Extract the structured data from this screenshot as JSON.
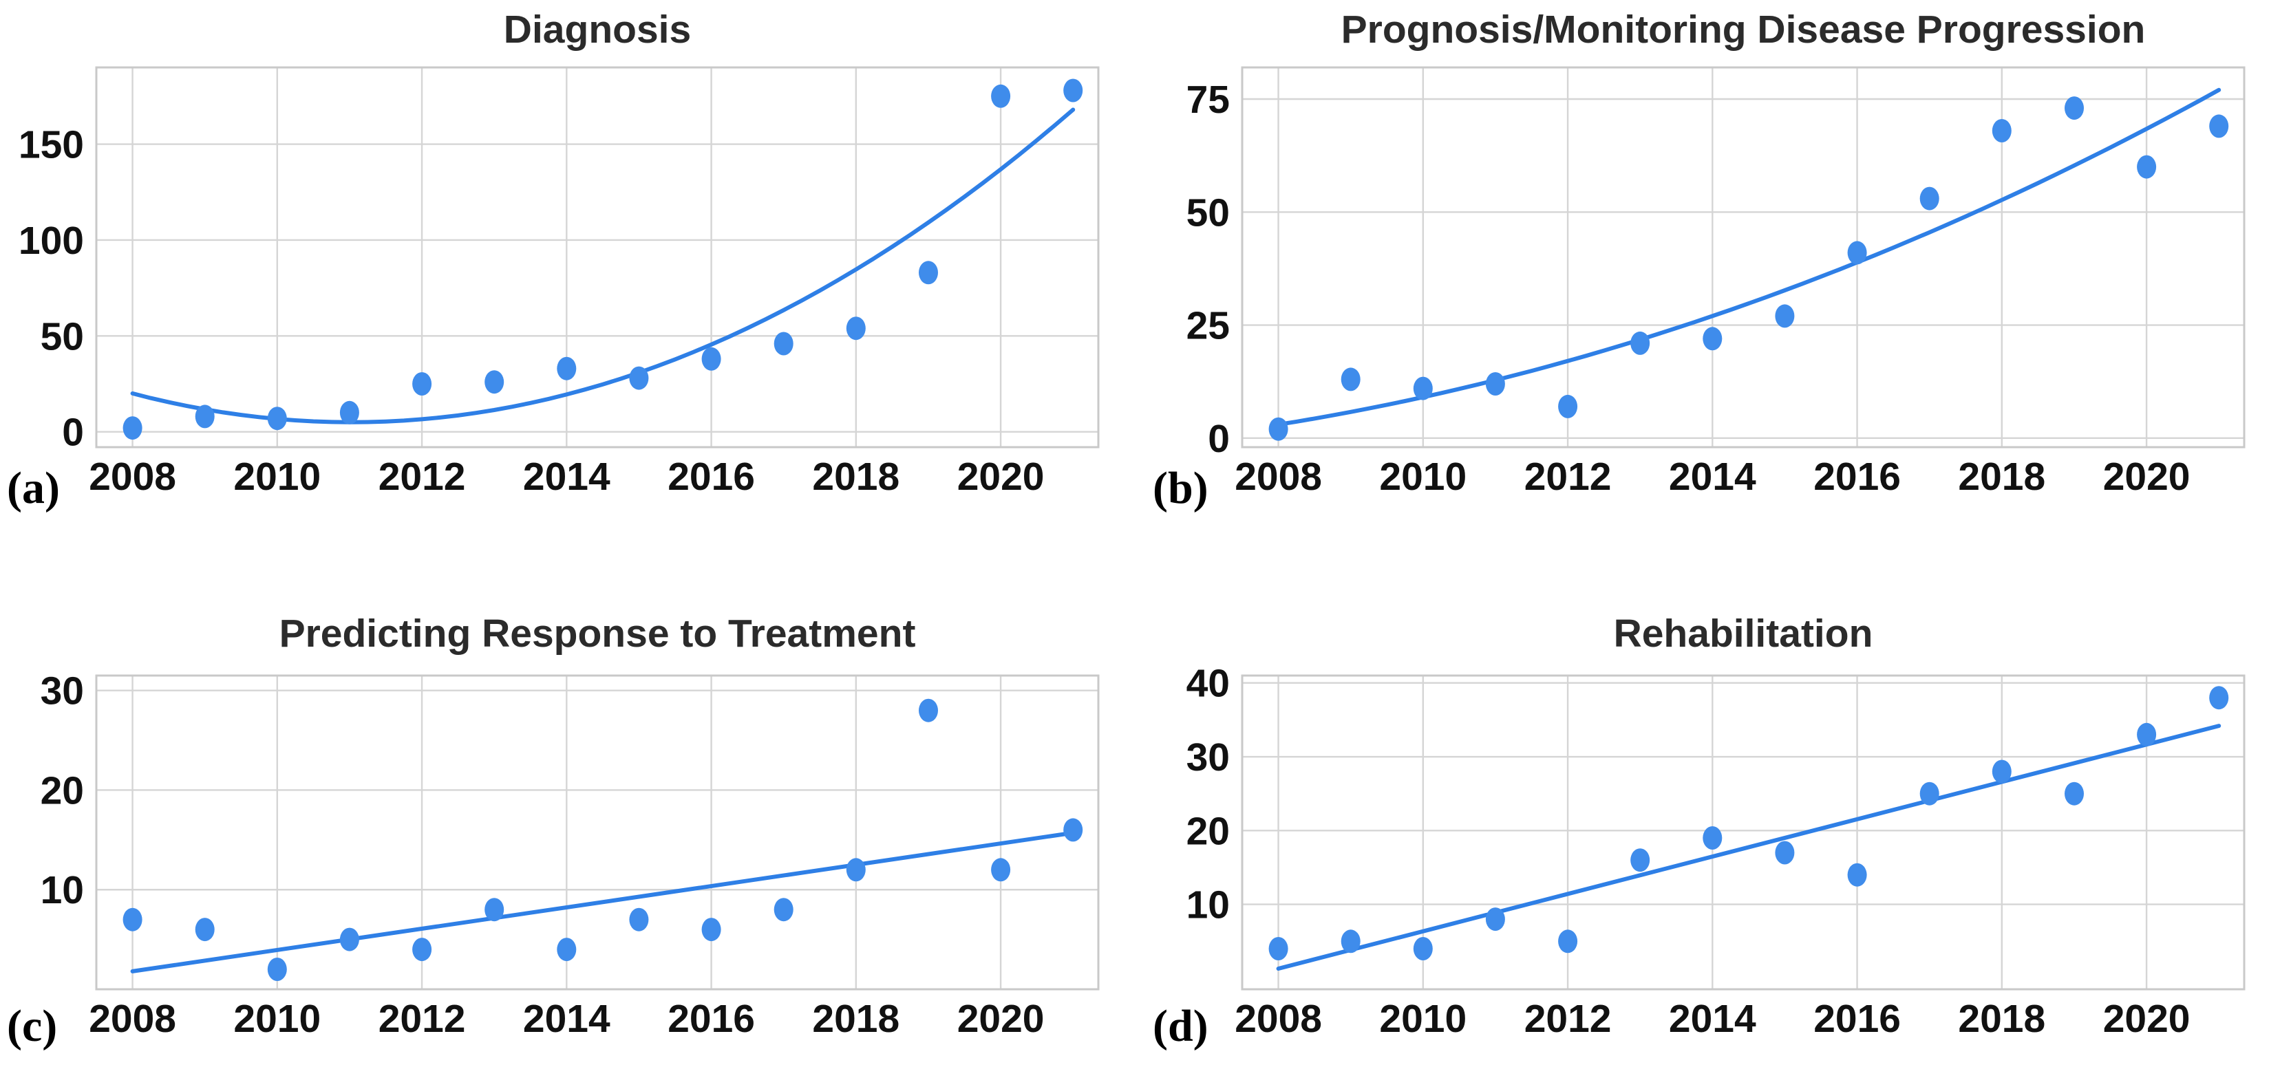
{
  "figure": {
    "background": "#ffffff",
    "accent_blue": "#3a86e9",
    "dot_color": "#3f8ceb",
    "line_color": "#2e7fe6",
    "grid_color": "#d5d5d5",
    "border_color": "#c9c9c9",
    "title_color": "#2b2b2b",
    "tick_color": "#111111",
    "letter_color": "#000000"
  },
  "chart_data": [
    {
      "id": "a",
      "panel_label": "(a)",
      "title": "Diagnosis",
      "type": "scatter",
      "x": [
        2008,
        2009,
        2010,
        2011,
        2012,
        2013,
        2014,
        2015,
        2016,
        2017,
        2018,
        2019,
        2020,
        2021
      ],
      "values": [
        2,
        8,
        7,
        10,
        25,
        26,
        33,
        28,
        38,
        46,
        54,
        83,
        175,
        178
      ],
      "trend": {
        "kind": "quadratic",
        "coeffs": [
          20,
          -9.915,
          1.638
        ]
      },
      "xticks": [
        2008,
        2010,
        2012,
        2014,
        2016,
        2018,
        2020
      ],
      "yticks": [
        0,
        50,
        100,
        150
      ],
      "xlim": [
        2007.5,
        2021.35
      ],
      "ylim": [
        -8,
        190
      ],
      "grid": true,
      "legend": "none"
    },
    {
      "id": "b",
      "panel_label": "(b)",
      "title": "Prognosis/Monitoring Disease Progression",
      "type": "scatter",
      "x": [
        2008,
        2009,
        2010,
        2011,
        2012,
        2013,
        2014,
        2015,
        2016,
        2017,
        2018,
        2019,
        2020,
        2021
      ],
      "values": [
        2,
        13,
        11,
        12,
        7,
        21,
        22,
        27,
        41,
        53,
        68,
        73,
        60,
        69
      ],
      "trend": {
        "kind": "quadratic",
        "coeffs": [
          3,
          2.549,
          0.2418
        ]
      },
      "xticks": [
        2008,
        2010,
        2012,
        2014,
        2016,
        2018,
        2020
      ],
      "yticks": [
        0,
        25,
        50,
        75
      ],
      "xlim": [
        2007.5,
        2021.35
      ],
      "ylim": [
        -2,
        82
      ],
      "grid": true,
      "legend": "none"
    },
    {
      "id": "c",
      "panel_label": "(c)",
      "title": "Predicting Response to Treatment",
      "type": "scatter",
      "x": [
        2008,
        2009,
        2010,
        2011,
        2012,
        2013,
        2014,
        2015,
        2016,
        2017,
        2018,
        2019,
        2020,
        2021
      ],
      "values": [
        7,
        6,
        2,
        5,
        4,
        8,
        4,
        7,
        6,
        8,
        12,
        28,
        12,
        16
      ],
      "trend": {
        "kind": "linear",
        "coeffs": [
          1.8,
          1.07
        ]
      },
      "xticks": [
        2008,
        2010,
        2012,
        2014,
        2016,
        2018,
        2020
      ],
      "yticks": [
        10,
        20,
        30
      ],
      "xlim": [
        2007.5,
        2021.35
      ],
      "ylim": [
        0,
        31.5
      ],
      "grid": true,
      "legend": "none"
    },
    {
      "id": "d",
      "panel_label": "(d)",
      "title": "Rehabilitation",
      "type": "scatter",
      "x": [
        2008,
        2009,
        2010,
        2011,
        2012,
        2013,
        2014,
        2015,
        2016,
        2017,
        2018,
        2019,
        2020,
        2021
      ],
      "values": [
        4,
        5,
        4,
        8,
        5,
        16,
        19,
        17,
        14,
        25,
        28,
        25,
        33,
        38
      ],
      "trend": {
        "kind": "linear",
        "coeffs": [
          1.3,
          2.53
        ]
      },
      "xticks": [
        2008,
        2010,
        2012,
        2014,
        2016,
        2018,
        2020
      ],
      "yticks": [
        10,
        20,
        30,
        40
      ],
      "xlim": [
        2007.5,
        2021.35
      ],
      "ylim": [
        -1.5,
        41
      ],
      "grid": true,
      "legend": "none"
    }
  ]
}
